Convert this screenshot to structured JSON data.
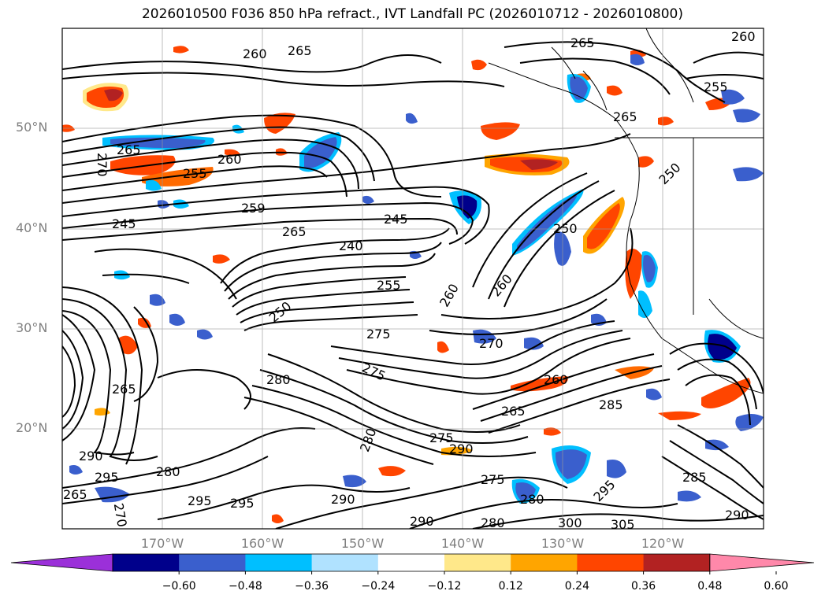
{
  "title": "2026010500 F036 850 hPa refract., IVT Landfall PC (2026010712 - 2026010800)",
  "map": {
    "lat_labels": [
      "50°N",
      "40°N",
      "30°N",
      "20°N"
    ],
    "lon_labels": [
      "170°W",
      "160°W",
      "150°W",
      "140°W",
      "130°W",
      "120°W"
    ],
    "contour_labels": [
      "260",
      "265",
      "265",
      "260",
      "255",
      "265",
      "270",
      "255",
      "260",
      "265",
      "245",
      "259",
      "265",
      "245",
      "240",
      "250",
      "255",
      "260",
      "260",
      "250",
      "275",
      "270",
      "280",
      "275",
      "260",
      "265",
      "285",
      "275",
      "280",
      "290",
      "290",
      "295",
      "280",
      "295",
      "295",
      "290",
      "275",
      "280",
      "295",
      "285",
      "300",
      "305",
      "290",
      "250"
    ]
  },
  "colorbar": {
    "ticks": [
      "−0.60",
      "−0.48",
      "−0.36",
      "−0.24",
      "−0.12",
      "0.12",
      "0.24",
      "0.36",
      "0.48",
      "0.60"
    ],
    "colors": [
      "#9b30d9",
      "#00008b",
      "#3a5fcd",
      "#00bfff",
      "#b0e2ff",
      "#ffffff",
      "#ffe88a",
      "#ffa500",
      "#ff4500",
      "#b22222",
      "#ff88aa"
    ]
  },
  "chart_data": {
    "type": "heatmap",
    "title": "2026010500 F036 850 hPa refract., IVT Landfall PC (2026010712 - 2026010800)",
    "x_ticks": [
      "170°W",
      "160°W",
      "150°W",
      "140°W",
      "130°W",
      "120°W"
    ],
    "y_ticks": [
      "50°N",
      "40°N",
      "30°N",
      "20°N"
    ],
    "colorbar_levels": [
      -0.6,
      -0.48,
      -0.36,
      -0.24,
      -0.12,
      0.12,
      0.24,
      0.36,
      0.48,
      0.6
    ],
    "colorbar_extend": "both",
    "contour_field_levels_range": [
      240,
      305
    ],
    "grid": true
  }
}
